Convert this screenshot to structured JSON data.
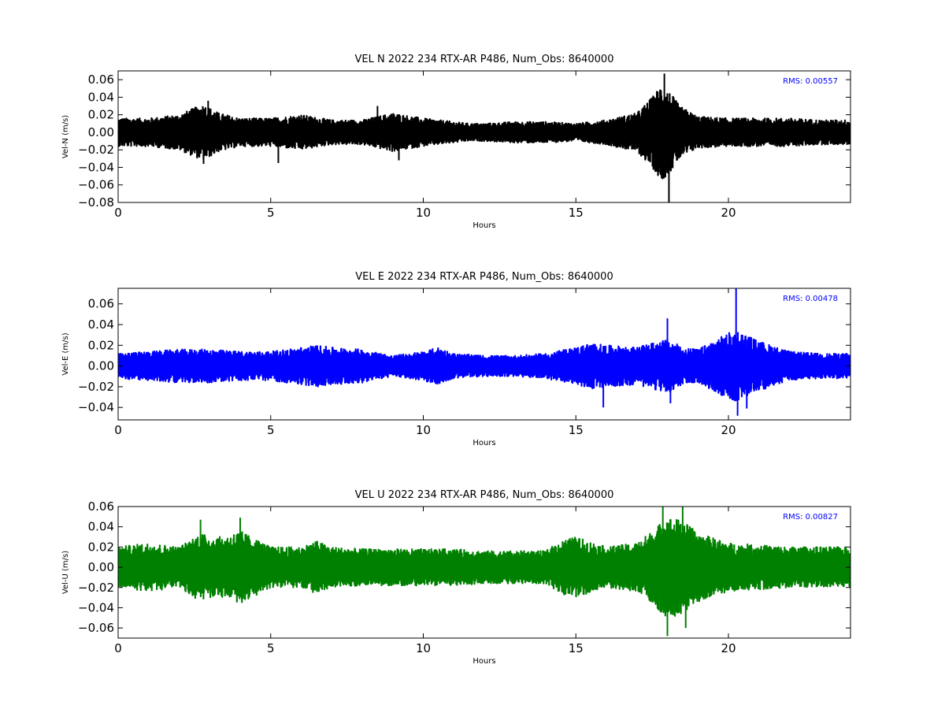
{
  "chart_data": [
    {
      "type": "line",
      "title": "VEL N 2022 234 RTX-AR  P486, Num_Obs: 8640000",
      "xlabel": "Hours",
      "ylabel": "Vel-N (m/s)",
      "xlim": [
        0,
        24
      ],
      "ylim": [
        -0.08,
        0.07
      ],
      "xticks": [
        "0",
        "5",
        "10",
        "15",
        "20"
      ],
      "yticks": [
        "0.06",
        "0.04",
        "0.02",
        "0.00",
        "−0.02",
        "−0.04",
        "−0.06",
        "−0.08"
      ],
      "rms_label": "RMS:  0.00557",
      "color": "#000000",
      "envelope": {
        "hours": [
          0,
          1,
          2,
          2.5,
          2.8,
          3.3,
          4,
          5,
          6,
          7,
          8,
          9,
          10,
          11,
          11.5,
          12,
          13,
          14,
          15,
          16,
          17,
          17.5,
          17.8,
          18.1,
          18.4,
          19,
          20,
          21,
          22,
          23,
          24
        ],
        "amplitude": [
          0.016,
          0.016,
          0.02,
          0.028,
          0.032,
          0.022,
          0.016,
          0.016,
          0.02,
          0.014,
          0.014,
          0.022,
          0.016,
          0.012,
          0.01,
          0.01,
          0.012,
          0.012,
          0.01,
          0.014,
          0.022,
          0.04,
          0.055,
          0.045,
          0.03,
          0.018,
          0.016,
          0.016,
          0.016,
          0.014,
          0.014
        ]
      },
      "spikes": [
        {
          "hour": 17.9,
          "value": 0.067
        },
        {
          "hour": 18.05,
          "value": -0.08
        },
        {
          "hour": 2.95,
          "value": 0.036
        },
        {
          "hour": 2.8,
          "value": -0.036
        },
        {
          "hour": 5.25,
          "value": -0.035
        },
        {
          "hour": 8.5,
          "value": 0.03
        },
        {
          "hour": 9.2,
          "value": -0.032
        }
      ]
    },
    {
      "type": "line",
      "title": "VEL E 2022 234 RTX-AR  P486, Num_Obs: 8640000",
      "xlabel": "Hours",
      "ylabel": "Vel-E (m/s)",
      "xlim": [
        0,
        24
      ],
      "ylim": [
        -0.052,
        0.075
      ],
      "xticks": [
        "0",
        "5",
        "10",
        "15",
        "20"
      ],
      "yticks": [
        "0.06",
        "0.04",
        "0.02",
        "0.00",
        "−0.02",
        "−0.04"
      ],
      "rms_label": "RMS:  0.00478",
      "color": "#0000ff",
      "envelope": {
        "hours": [
          0,
          1,
          2,
          3,
          4,
          5,
          6,
          6.5,
          7,
          8,
          9,
          10,
          10.5,
          11,
          12,
          13,
          14,
          15,
          15.5,
          16,
          17,
          18,
          18.5,
          19,
          19.5,
          20,
          20.3,
          21,
          22,
          23,
          24
        ],
        "amplitude": [
          0.012,
          0.014,
          0.016,
          0.016,
          0.014,
          0.014,
          0.018,
          0.02,
          0.018,
          0.016,
          0.01,
          0.014,
          0.018,
          0.012,
          0.01,
          0.01,
          0.012,
          0.018,
          0.022,
          0.02,
          0.018,
          0.026,
          0.018,
          0.016,
          0.024,
          0.032,
          0.034,
          0.024,
          0.014,
          0.012,
          0.012
        ]
      },
      "spikes": [
        {
          "hour": 20.25,
          "value": 0.075
        },
        {
          "hour": 20.3,
          "value": -0.048
        },
        {
          "hour": 18.0,
          "value": 0.046
        },
        {
          "hour": 15.9,
          "value": -0.04
        },
        {
          "hour": 18.1,
          "value": -0.036
        },
        {
          "hour": 20.6,
          "value": -0.041
        }
      ]
    },
    {
      "type": "line",
      "title": "VEL U 2022 234 RTX-AR  P486, Num_Obs: 8640000",
      "xlabel": "Hours",
      "ylabel": "Vel-U (m/s)",
      "xlim": [
        0,
        24
      ],
      "ylim": [
        -0.07,
        0.06
      ],
      "xticks": [
        "0",
        "5",
        "10",
        "15",
        "20"
      ],
      "yticks": [
        "0.06",
        "0.04",
        "0.02",
        "0.00",
        "−0.02",
        "−0.04",
        "−0.06"
      ],
      "rms_label": "RMS:  0.00827",
      "color": "#008000",
      "envelope": {
        "hours": [
          0,
          1,
          2,
          2.7,
          3,
          3.5,
          4,
          5,
          6,
          6.5,
          7,
          8,
          9,
          10,
          11,
          12,
          13,
          14,
          14.5,
          15,
          16,
          17,
          17.5,
          18,
          18.5,
          19,
          20,
          21,
          22,
          23,
          24
        ],
        "amplitude": [
          0.02,
          0.024,
          0.02,
          0.034,
          0.03,
          0.03,
          0.036,
          0.02,
          0.02,
          0.026,
          0.02,
          0.018,
          0.018,
          0.018,
          0.018,
          0.016,
          0.016,
          0.016,
          0.026,
          0.03,
          0.02,
          0.024,
          0.036,
          0.05,
          0.046,
          0.034,
          0.024,
          0.022,
          0.02,
          0.02,
          0.02
        ]
      },
      "spikes": [
        {
          "hour": 17.85,
          "value": 0.06
        },
        {
          "hour": 18.5,
          "value": 0.06
        },
        {
          "hour": 18.0,
          "value": -0.068
        },
        {
          "hour": 4.0,
          "value": 0.049
        },
        {
          "hour": 2.7,
          "value": 0.047
        },
        {
          "hour": 18.6,
          "value": -0.06
        }
      ]
    }
  ]
}
